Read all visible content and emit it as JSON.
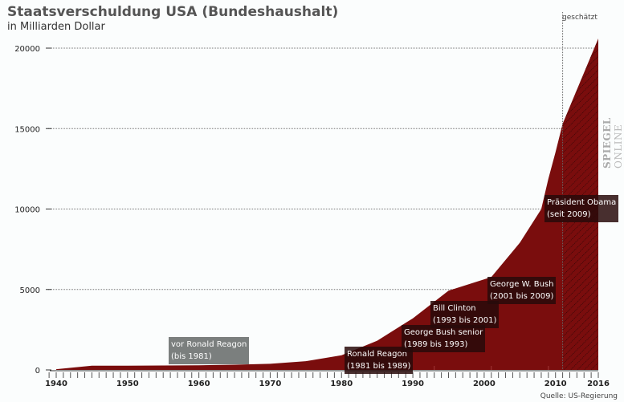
{
  "chart_data": {
    "type": "area",
    "title": "Staatsverschuldung USA (Bundeshaushalt)",
    "subtitle": "in Milliarden Dollar",
    "xlim": [
      1940,
      2016
    ],
    "ylim": [
      0,
      20000
    ],
    "yticks": [
      0,
      5000,
      10000,
      15000,
      20000
    ],
    "xticks": [
      "1940",
      "1950",
      "1960",
      "1970",
      "1980",
      "1990",
      "2000",
      "2010",
      "2016"
    ],
    "grid": true,
    "estimate_from": 2011,
    "estimate_label": "geschätzt",
    "series": [
      {
        "color": "#7a0d0d",
        "x": [
          1940,
          1945,
          1950,
          1955,
          1960,
          1965,
          1970,
          1975,
          1980,
          1985,
          1990,
          1995,
          2000,
          2001,
          2005,
          2008,
          2009,
          2010,
          2011,
          2016
        ],
        "y": [
          43,
          260,
          257,
          274,
          290,
          322,
          381,
          542,
          909,
          1817,
          3206,
          4921,
          5629,
          5770,
          7905,
          9986,
          11876,
          13529,
          15300,
          20600
        ]
      }
    ],
    "annotations": [
      {
        "line1": "vor Ronald Reagon",
        "line2": "(bis 1981)",
        "start": null,
        "style": "grey"
      },
      {
        "line1": "Ronald Reagon",
        "line2": "(1981 bis 1989)",
        "start": 1981,
        "style": "dark"
      },
      {
        "line1": "George Bush senior",
        "line2": "(1989 bis 1993)",
        "start": 1989,
        "style": "dark"
      },
      {
        "line1": "Bill Clinton",
        "line2": "(1993 bis 2001)",
        "start": 1993,
        "style": "dark"
      },
      {
        "line1": "George W. Bush",
        "line2": "(2001 bis 2009)",
        "start": 2001,
        "style": "dark"
      },
      {
        "line1": "Präsident Obama",
        "line2": "(seit 2009)",
        "start": 2009,
        "style": "dark"
      }
    ],
    "source": "Quelle: US-Regierung",
    "logo": "SPIEGEL ONLINE"
  }
}
